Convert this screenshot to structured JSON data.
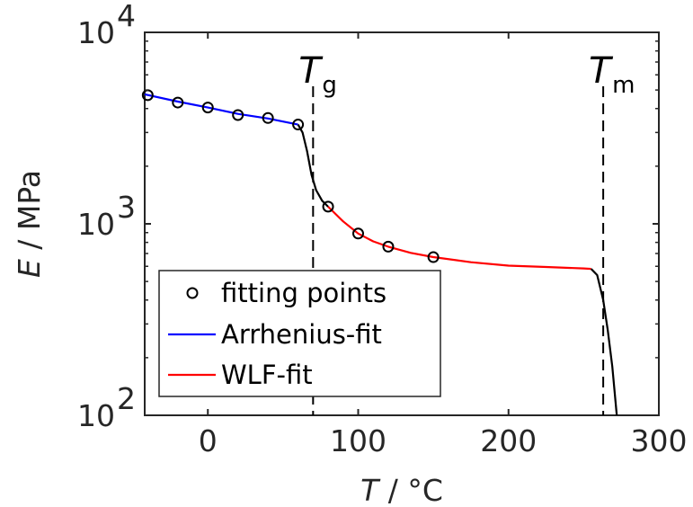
{
  "chart_data": {
    "type": "line",
    "xlabel": {
      "var": "T",
      "unit": "°C"
    },
    "ylabel": {
      "var": "E",
      "unit": "MPa"
    },
    "xlim": [
      -42,
      300
    ],
    "ylim": [
      100,
      10000
    ],
    "yscale": "log",
    "grid": false,
    "x_ticks": [
      0,
      100,
      200,
      300
    ],
    "x_tick_labels": [
      "0",
      "100",
      "200",
      "300"
    ],
    "y_ticks": [
      {
        "value": 100,
        "base": "10",
        "exp": "2"
      },
      {
        "value": 1000,
        "base": "10",
        "exp": "3"
      },
      {
        "value": 10000,
        "base": "10",
        "exp": "4"
      }
    ],
    "annotations": [
      {
        "main": "T",
        "sub": "g",
        "x": 70
      },
      {
        "main": "T",
        "sub": "m",
        "x": 263
      }
    ],
    "legend": {
      "placement": "bottom-left",
      "entries": [
        "fitting points",
        "Arrhenius-fit",
        "WLF-fit"
      ]
    },
    "series": [
      {
        "name": "fitting points",
        "style": "markers",
        "color": "#000000",
        "points": [
          [
            -40,
            4700
          ],
          [
            -20,
            4300
          ],
          [
            0,
            4050
          ],
          [
            20,
            3700
          ],
          [
            40,
            3570
          ],
          [
            60,
            3300
          ],
          [
            80,
            1230
          ],
          [
            100,
            890
          ],
          [
            120,
            760
          ],
          [
            150,
            670
          ]
        ]
      },
      {
        "name": "Arrhenius-fit",
        "style": "line",
        "color": "#0000ff",
        "points": [
          [
            -42,
            4750
          ],
          [
            -20,
            4350
          ],
          [
            0,
            4050
          ],
          [
            20,
            3750
          ],
          [
            40,
            3550
          ],
          [
            60,
            3300
          ]
        ]
      },
      {
        "name": "WLF-fit",
        "style": "line",
        "color": "#ff0000",
        "points": [
          [
            80,
            1230
          ],
          [
            90,
            1030
          ],
          [
            100,
            890
          ],
          [
            110,
            810
          ],
          [
            120,
            760
          ],
          [
            135,
            705
          ],
          [
            150,
            670
          ],
          [
            175,
            630
          ],
          [
            200,
            605
          ],
          [
            225,
            595
          ],
          [
            250,
            585
          ],
          [
            255,
            582
          ]
        ]
      },
      {
        "name": "",
        "style": "line",
        "color": "#000000",
        "points": [
          [
            60,
            3300
          ],
          [
            63,
            3000
          ],
          [
            66,
            2400
          ],
          [
            69,
            1800
          ],
          [
            72,
            1500
          ],
          [
            76,
            1320
          ],
          [
            80,
            1230
          ]
        ]
      },
      {
        "name": "",
        "style": "line",
        "color": "#000000",
        "points": [
          [
            255,
            582
          ],
          [
            259,
            540
          ],
          [
            263,
            400
          ],
          [
            266,
            280
          ],
          [
            269,
            180
          ],
          [
            272,
            100
          ]
        ]
      }
    ]
  }
}
